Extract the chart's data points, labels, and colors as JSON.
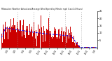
{
  "title": "Milwaukee Weather Actual and Average Wind Speed by Minute mph (Last 24 Hours)",
  "bg_color": "#ffffff",
  "bar_color": "#cc0000",
  "line_color": "#0000ff",
  "grid_color": "#999999",
  "n_points": 1440,
  "ylim": [
    0,
    25
  ],
  "yticks": [
    5,
    10,
    15,
    20,
    25
  ],
  "num_gridlines": 6,
  "seed": 42
}
